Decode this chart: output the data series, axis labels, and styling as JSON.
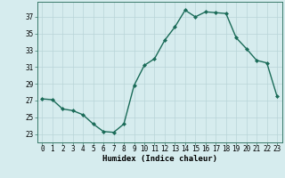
{
  "x": [
    0,
    1,
    2,
    3,
    4,
    5,
    6,
    7,
    8,
    9,
    10,
    11,
    12,
    13,
    14,
    15,
    16,
    17,
    18,
    19,
    20,
    21,
    22,
    23
  ],
  "y": [
    27.2,
    27.1,
    26.0,
    25.8,
    25.3,
    24.2,
    23.3,
    23.2,
    24.2,
    28.8,
    31.2,
    32.0,
    34.2,
    35.8,
    37.8,
    37.0,
    37.6,
    37.5,
    37.4,
    34.5,
    33.2,
    31.8,
    31.5,
    27.5
  ],
  "line_color": "#1a6b58",
  "marker": "D",
  "marker_size": 2.0,
  "bg_color": "#d6ecee",
  "grid_color": "#b8d4d8",
  "xlabel": "Humidex (Indice chaleur)",
  "xlim": [
    -0.5,
    23.5
  ],
  "ylim": [
    22.0,
    38.8
  ],
  "yticks": [
    23,
    25,
    27,
    29,
    31,
    33,
    35,
    37
  ],
  "xticks": [
    0,
    1,
    2,
    3,
    4,
    5,
    6,
    7,
    8,
    9,
    10,
    11,
    12,
    13,
    14,
    15,
    16,
    17,
    18,
    19,
    20,
    21,
    22,
    23
  ],
  "tick_fontsize": 5.5,
  "xlabel_fontsize": 6.5,
  "line_width": 1.0
}
